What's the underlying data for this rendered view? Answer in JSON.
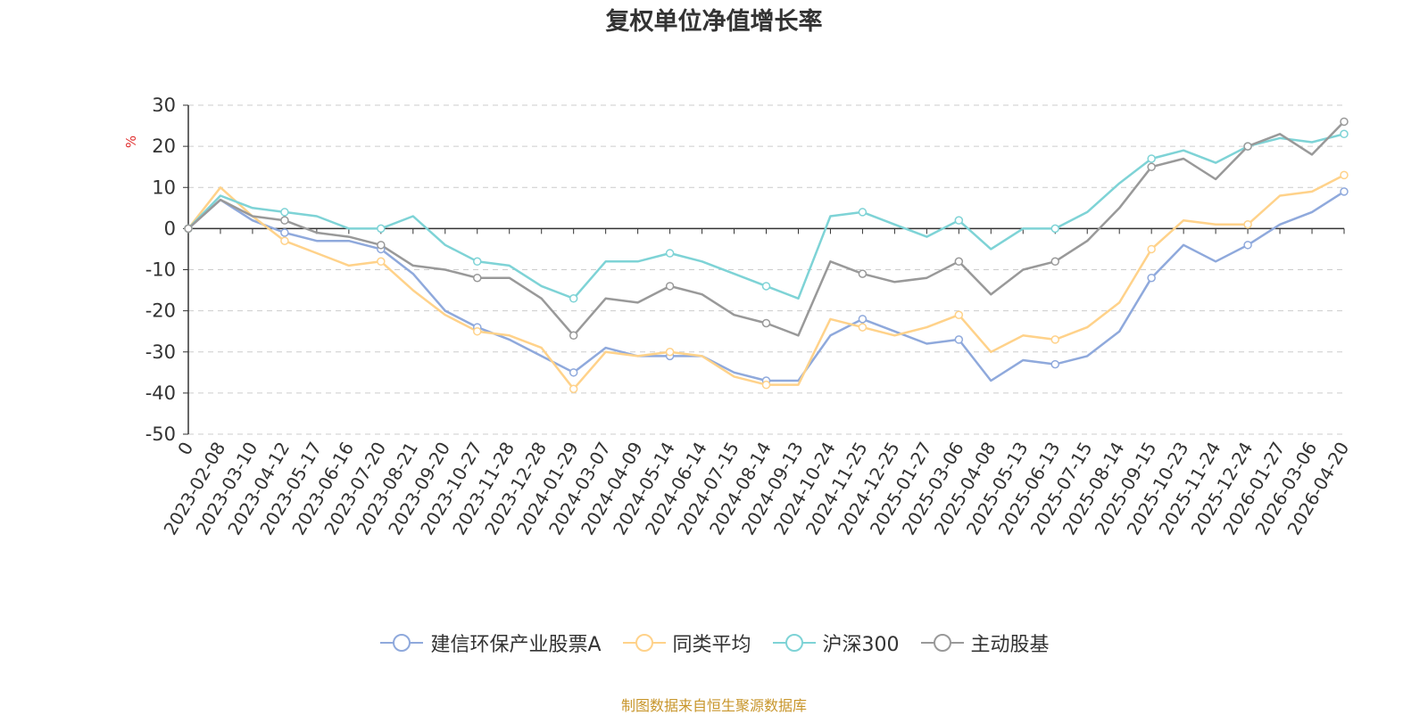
{
  "chart_data": {
    "type": "line",
    "title": "复权单位净值增长率",
    "ylabel": "%",
    "ylim": [
      -50,
      30
    ],
    "yticks": [
      -50,
      -40,
      -30,
      -20,
      -10,
      0,
      10,
      20,
      30
    ],
    "x_categories": [
      "0",
      "2023-02-08",
      "2023-03-10",
      "2023-04-12",
      "2023-05-17",
      "2023-06-16",
      "2023-07-20",
      "2023-08-21",
      "2023-09-20",
      "2023-10-27",
      "2023-11-28",
      "2023-12-28",
      "2024-01-29",
      "2024-03-07",
      "2024-04-09",
      "2024-05-14",
      "2024-06-14",
      "2024-07-15",
      "2024-08-14",
      "2024-09-13",
      "2024-10-24",
      "2024-11-25",
      "2024-12-25",
      "2025-01-27",
      "2025-03-06",
      "2025-04-08",
      "2025-05-13",
      "2025-06-13",
      "2025-07-15",
      "2025-08-14",
      "2025-09-15",
      "2025-10-23",
      "2025-11-24",
      "2025-12-24",
      "2026-01-27",
      "2026-03-06",
      "2026-04-20"
    ],
    "series": [
      {
        "name": "建信环保产业股票A",
        "color": "#8fa9dc",
        "values": [
          0,
          7,
          2,
          -1,
          -3,
          -3,
          -5,
          -11,
          -20,
          -24,
          -27,
          -31,
          -35,
          -29,
          -31,
          -31,
          -31,
          -35,
          -37,
          -37,
          -26,
          -22,
          -25,
          -28,
          -27,
          -37,
          -32,
          -33,
          -31,
          -25,
          -12,
          -4,
          -8,
          -4,
          1,
          4,
          9
        ]
      },
      {
        "name": "同类平均",
        "color": "#ffd28a",
        "values": [
          0,
          10,
          3,
          -3,
          -6,
          -9,
          -8,
          -15,
          -21,
          -25,
          -26,
          -29,
          -39,
          -30,
          -31,
          -30,
          -31,
          -36,
          -38,
          -38,
          -22,
          -24,
          -26,
          -24,
          -21,
          -30,
          -26,
          -27,
          -24,
          -18,
          -5,
          2,
          1,
          1,
          8,
          9,
          13
        ]
      },
      {
        "name": "沪深300",
        "color": "#7ed3d6",
        "values": [
          0,
          8,
          5,
          4,
          3,
          0,
          0,
          3,
          -4,
          -8,
          -9,
          -14,
          -17,
          -8,
          -8,
          -6,
          -8,
          -11,
          -14,
          -17,
          3,
          4,
          1,
          -2,
          2,
          -5,
          0,
          0,
          4,
          11,
          17,
          19,
          16,
          20,
          22,
          21,
          23
        ]
      },
      {
        "name": "主动股基",
        "color": "#999999",
        "values": [
          0,
          7,
          3,
          2,
          -1,
          -2,
          -4,
          -9,
          -10,
          -12,
          -12,
          -17,
          -26,
          -17,
          -18,
          -14,
          -16,
          -21,
          -23,
          -26,
          -8,
          -11,
          -13,
          -12,
          -8,
          -16,
          -10,
          -8,
          -3,
          5,
          15,
          17,
          12,
          20,
          23,
          18,
          26
        ]
      }
    ]
  },
  "source_text": "制图数据来自恒生聚源数据库"
}
